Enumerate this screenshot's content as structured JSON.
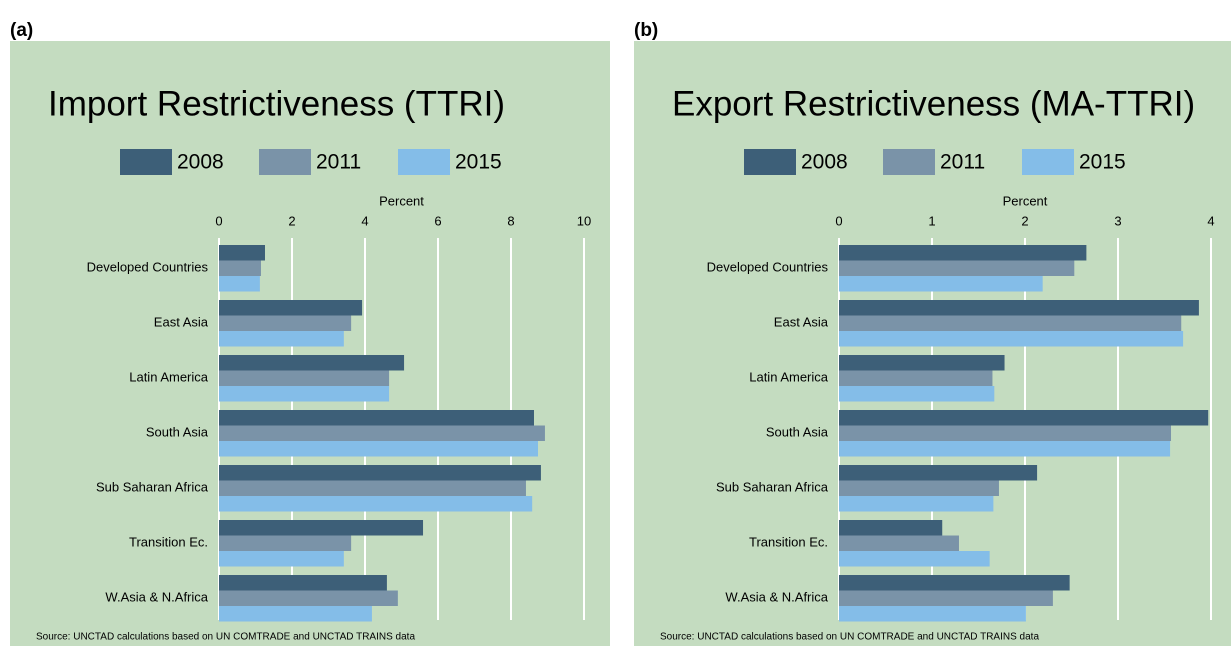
{
  "chart_data": [
    {
      "type": "barh",
      "label": "(a)",
      "title": "Import Restrictiveness (TTRI)",
      "xlabel": "Percent",
      "categories": [
        "Developed Countries",
        "East Asia",
        "Latin America",
        "South Asia",
        "Sub Saharan Africa",
        "Transition Ec.",
        "W.Asia & N.Africa"
      ],
      "series": [
        {
          "name": "2008",
          "color": "#3d5f78",
          "values": [
            1.26,
            3.92,
            5.07,
            8.63,
            8.82,
            5.59,
            4.6
          ]
        },
        {
          "name": "2011",
          "color": "#7a93a8",
          "values": [
            1.15,
            3.62,
            4.66,
            8.93,
            8.41,
            3.62,
            4.9
          ]
        },
        {
          "name": "2015",
          "color": "#84bde8",
          "values": [
            1.12,
            3.42,
            4.66,
            8.74,
            8.58,
            3.42,
            4.19
          ]
        }
      ],
      "xlim": [
        0,
        10
      ],
      "xticks": [
        0,
        2,
        4,
        6,
        8,
        10
      ],
      "grid": true,
      "source": "Source: UNCTAD calculations based on UN COMTRADE and UNCTAD TRAINS data"
    },
    {
      "type": "barh",
      "label": "(b)",
      "title": "Export Restrictiveness (MA-TTRI)",
      "xlabel": "Percent",
      "categories": [
        "Developed Countries",
        "East Asia",
        "Latin America",
        "South Asia",
        "Sub Saharan Africa",
        "Transition Ec.",
        "W.Asia & N.Africa"
      ],
      "series": [
        {
          "name": "2008",
          "color": "#3d5f78",
          "values": [
            2.66,
            3.87,
            1.78,
            3.97,
            2.13,
            1.11,
            2.48
          ]
        },
        {
          "name": "2011",
          "color": "#7a93a8",
          "values": [
            2.53,
            3.68,
            1.65,
            3.57,
            1.72,
            1.29,
            2.3
          ]
        },
        {
          "name": "2015",
          "color": "#84bde8",
          "values": [
            2.19,
            3.7,
            1.67,
            3.56,
            1.66,
            1.62,
            2.01
          ]
        }
      ],
      "xlim": [
        0,
        4
      ],
      "xticks": [
        0,
        1,
        2,
        3,
        4
      ],
      "grid": true,
      "source": "Source: UNCTAD calculations based on UN COMTRADE and UNCTAD TRAINS data"
    }
  ]
}
